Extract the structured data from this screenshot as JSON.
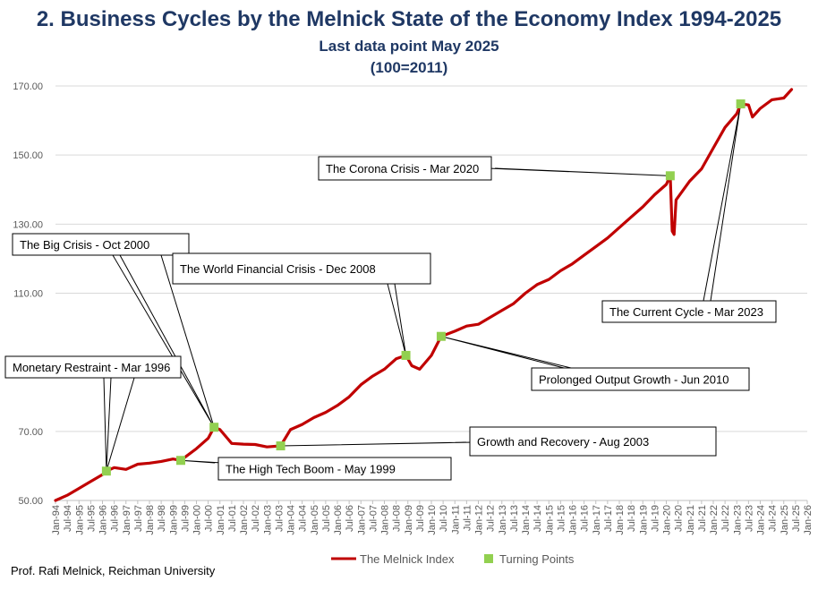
{
  "titles": {
    "main": "2.  Business Cycles by the Melnick State of the Economy Index 1994-2025",
    "sub1": "Last data point May 2025",
    "sub2": "(100=2011)"
  },
  "credit": "Prof. Rafi Melnick, Reichman University",
  "colors": {
    "line": "#c00000",
    "marker": "#92d050",
    "title": "#1f3864",
    "grid": "#d9d9d9"
  },
  "chart_data": {
    "type": "line",
    "ylim": [
      50,
      170
    ],
    "xlim": [
      1994.0,
      2026.0
    ],
    "y_ticks": [
      {
        "value": 50,
        "label": "50.00"
      },
      {
        "value": 70,
        "label": "70.00"
      },
      {
        "value": 110,
        "label": "110.00"
      },
      {
        "value": 130,
        "label": "130.00"
      },
      {
        "value": 150,
        "label": "150.00"
      },
      {
        "value": 170,
        "label": "170.00"
      }
    ],
    "x_tick_labels": [
      "Jan-94",
      "Jul-94",
      "Jan-95",
      "Jul-95",
      "Jan-96",
      "Jul-96",
      "Jan-97",
      "Jul-97",
      "Jan-98",
      "Jul-98",
      "Jan-99",
      "Jul-99",
      "Jan-00",
      "Jul-00",
      "Jan-01",
      "Jul-01",
      "Jan-02",
      "Jul-02",
      "Jan-03",
      "Jul-03",
      "Jan-04",
      "Jul-04",
      "Jan-05",
      "Jul-05",
      "Jan-06",
      "Jul-06",
      "Jan-07",
      "Jul-07",
      "Jan-08",
      "Jul-08",
      "Jan-09",
      "Jul-09",
      "Jan-10",
      "Jul-10",
      "Jan-11",
      "Jul-11",
      "Jan-12",
      "Jul-12",
      "Jan-13",
      "Jul-13",
      "Jan-14",
      "Jul-14",
      "Jan-15",
      "Jul-15",
      "Jan-16",
      "Jul-16",
      "Jan-17",
      "Jul-17",
      "Jan-18",
      "Jul-18",
      "Jan-19",
      "Jul-19",
      "Jan-20",
      "Jul-20",
      "Jan-21",
      "Jul-21",
      "Jan-22",
      "Jul-22",
      "Jan-23",
      "Jul-23",
      "Jan-24",
      "Jul-24",
      "Jan-25",
      "Jul-25",
      "Jan-26"
    ],
    "series": [
      {
        "name": "The Melnick Index",
        "points": [
          [
            "Jan-94",
            50.0
          ],
          [
            "Jul-94",
            51.5
          ],
          [
            "Jan-95",
            53.5
          ],
          [
            "Jul-95",
            55.5
          ],
          [
            "Jan-96",
            57.5
          ],
          [
            "Mar-96",
            58.5
          ],
          [
            "Jul-96",
            59.5
          ],
          [
            "Jan-97",
            59.0
          ],
          [
            "Jul-97",
            60.5
          ],
          [
            "Jan-98",
            60.8
          ],
          [
            "Jul-98",
            61.3
          ],
          [
            "Jan-99",
            62.0
          ],
          [
            "May-99",
            61.6
          ],
          [
            "Jan-00",
            65.0
          ],
          [
            "Jul-00",
            68.0
          ],
          [
            "Oct-00",
            71.2
          ],
          [
            "Jan-01",
            70.5
          ],
          [
            "Jul-01",
            66.5
          ],
          [
            "Jan-02",
            66.3
          ],
          [
            "Jul-02",
            66.2
          ],
          [
            "Jan-03",
            65.5
          ],
          [
            "Aug-03",
            65.8
          ],
          [
            "Jan-04",
            70.5
          ],
          [
            "Jul-04",
            72.0
          ],
          [
            "Jan-05",
            74.0
          ],
          [
            "Jul-05",
            75.5
          ],
          [
            "Jan-06",
            77.5
          ],
          [
            "Jul-06",
            80.0
          ],
          [
            "Jan-07",
            83.5
          ],
          [
            "Jul-07",
            86.0
          ],
          [
            "Jan-08",
            88.0
          ],
          [
            "Jul-08",
            91.0
          ],
          [
            "Dec-08",
            92.0
          ],
          [
            "Mar-09",
            89.0
          ],
          [
            "Jul-09",
            88.0
          ],
          [
            "Jan-10",
            92.0
          ],
          [
            "Jun-10",
            97.5
          ],
          [
            "Jan-11",
            99.0
          ],
          [
            "Jul-11",
            100.5
          ],
          [
            "Jan-12",
            101.0
          ],
          [
            "Jul-12",
            103.0
          ],
          [
            "Jan-13",
            105.0
          ],
          [
            "Jul-13",
            107.0
          ],
          [
            "Jan-14",
            110.0
          ],
          [
            "Jul-14",
            112.5
          ],
          [
            "Jan-15",
            114.0
          ],
          [
            "Jul-15",
            116.5
          ],
          [
            "Jan-16",
            118.5
          ],
          [
            "Jul-16",
            121.0
          ],
          [
            "Jan-17",
            123.5
          ],
          [
            "Jul-17",
            126.0
          ],
          [
            "Jan-18",
            129.0
          ],
          [
            "Jul-18",
            132.0
          ],
          [
            "Jan-19",
            135.0
          ],
          [
            "Jul-19",
            138.5
          ],
          [
            "Jan-20",
            141.5
          ],
          [
            "Mar-20",
            144.0
          ],
          [
            "Apr-20",
            128.0
          ],
          [
            "May-20",
            127.0
          ],
          [
            "Jun-20",
            137.0
          ],
          [
            "Jan-21",
            142.5
          ],
          [
            "Jul-21",
            146.0
          ],
          [
            "Jan-22",
            152.0
          ],
          [
            "Jul-22",
            158.0
          ],
          [
            "Jan-23",
            162.0
          ],
          [
            "Mar-23",
            164.8
          ],
          [
            "Jul-23",
            164.5
          ],
          [
            "Sep-23",
            161.0
          ],
          [
            "Jan-24",
            163.5
          ],
          [
            "Jul-24",
            166.0
          ],
          [
            "Jan-25",
            166.5
          ],
          [
            "May-25",
            169.0
          ]
        ]
      },
      {
        "name": "Turning Points",
        "points": [
          [
            "Mar-96",
            58.5
          ],
          [
            "May-99",
            61.6
          ],
          [
            "Oct-00",
            71.2
          ],
          [
            "Aug-03",
            65.8
          ],
          [
            "Dec-08",
            92.0
          ],
          [
            "Jun-10",
            97.5
          ],
          [
            "Mar-20",
            144.0
          ],
          [
            "Mar-23",
            164.8
          ]
        ]
      }
    ],
    "annotations": [
      {
        "label": "Monetary Restraint - Mar 1996",
        "point": "Mar-96"
      },
      {
        "label": "The High Tech Boom - May 1999",
        "point": "May-99"
      },
      {
        "label": "The Big Crisis - Oct 2000",
        "point": "Oct-00"
      },
      {
        "label": "Growth and Recovery - Aug 2003",
        "point": "Aug-03"
      },
      {
        "label": "The World Financial Crisis - Dec 2008",
        "point": "Dec-08"
      },
      {
        "label": "Prolonged Output Growth - Jun 2010",
        "point": "Jun-10"
      },
      {
        "label": "The Corona Crisis - Mar 2020",
        "point": "Mar-20"
      },
      {
        "label": "The Current Cycle - Mar 2023",
        "point": "Mar-23"
      }
    ],
    "legend": {
      "position": "bottom"
    }
  }
}
